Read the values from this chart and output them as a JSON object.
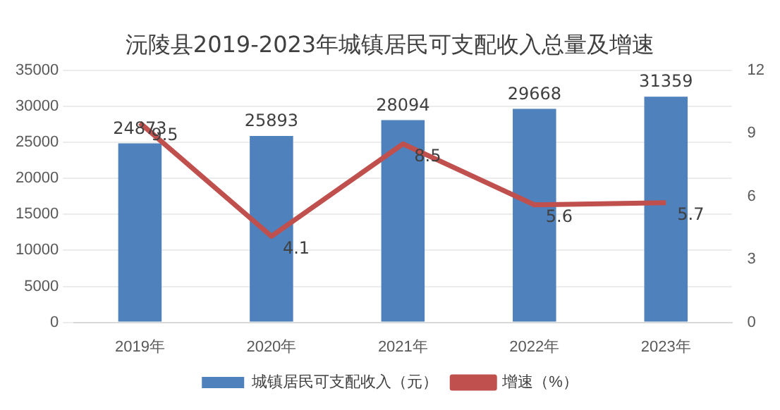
{
  "chart_data": {
    "type": "bar",
    "title": "沅陵县2019-2023年城镇居民可支配收入总量及增速",
    "categories": [
      "2019年",
      "2020年",
      "2021年",
      "2022年",
      "2023年"
    ],
    "series": [
      {
        "name": "城镇居民可支配收入（元）",
        "color": "#4f81bd",
        "values": [
          24873,
          25893,
          28094,
          29668,
          31359
        ]
      },
      {
        "name": "增速（%）",
        "type": "line",
        "axis": "y2",
        "color": "#c0504d",
        "values": [
          9.5,
          4.1,
          8.5,
          5.6,
          5.7
        ]
      }
    ],
    "ylim": [
      0,
      35000
    ],
    "yticks": [
      0,
      5000,
      10000,
      15000,
      20000,
      25000,
      30000,
      35000
    ],
    "y2lim": [
      0,
      12
    ],
    "y2ticks": [
      0,
      3,
      6,
      9,
      12
    ],
    "grid": "y",
    "legend": "bottom",
    "data_labels": true,
    "marker": "none",
    "line_style": "solid"
  }
}
